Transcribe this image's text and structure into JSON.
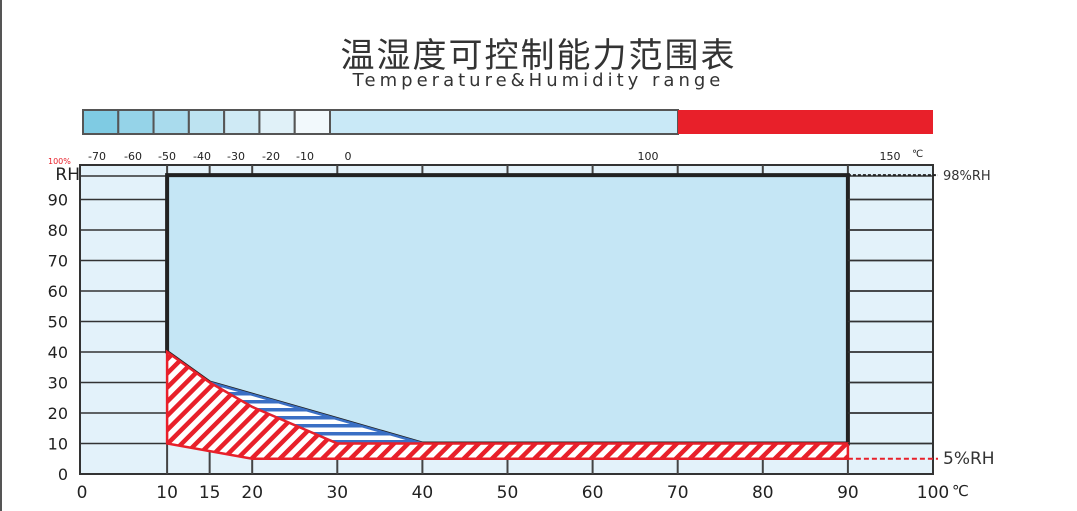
{
  "chart_data": {
    "type": "area",
    "title": "温湿度可控制能力范围表",
    "subtitle": "Temperature&Humidity range",
    "xlabel": "",
    "ylabel": "RH",
    "x_unit": "℃",
    "xlim": [
      0,
      100
    ],
    "ylim": [
      0,
      100
    ],
    "x_ticks": [
      "0",
      "10",
      "15",
      "20",
      "30",
      "40",
      "50",
      "60",
      "70",
      "80",
      "90",
      "100"
    ],
    "x_tick_values": [
      0,
      10,
      15,
      20,
      30,
      40,
      50,
      60,
      70,
      80,
      90,
      100
    ],
    "y_ticks": [
      "0",
      "10",
      "20",
      "30",
      "40",
      "50",
      "60",
      "70",
      "80",
      "90"
    ],
    "y_tick_values": [
      0,
      10,
      20,
      30,
      40,
      50,
      60,
      70,
      80,
      90
    ],
    "y_top_label": "100%",
    "grid": true,
    "temperature_bar": {
      "labels": [
        "-70",
        "-60",
        "-50",
        "-40",
        "-30",
        "-20",
        "-10",
        "0",
        "100",
        "150"
      ],
      "unit": "℃",
      "colors": {
        "cold": "#7fcbe3",
        "normal": "#c9e9f7",
        "hot": "#e8202a"
      }
    },
    "regions": [
      {
        "kind": "controllable",
        "color": "#c5e6f5",
        "points": [
          [
            10,
            98
          ],
          [
            90,
            98
          ],
          [
            90,
            10
          ],
          [
            40,
            10
          ],
          [
            30,
            18
          ],
          [
            15,
            30
          ],
          [
            10,
            40
          ]
        ]
      },
      {
        "kind": "blue-hatched",
        "color": "#3a6fc4",
        "points": [
          [
            15,
            30
          ],
          [
            30,
            18
          ],
          [
            40,
            10
          ],
          [
            30,
            10
          ],
          [
            20,
            22
          ]
        ]
      },
      {
        "kind": "red-hatched",
        "color": "#e8202a",
        "points": [
          [
            10,
            40
          ],
          [
            15,
            30
          ],
          [
            20,
            22
          ],
          [
            30,
            10
          ],
          [
            90,
            10
          ],
          [
            90,
            5
          ],
          [
            20,
            5
          ],
          [
            10,
            10
          ]
        ]
      }
    ],
    "annotations": [
      {
        "text": "98%RH",
        "y": 98,
        "line": "dotted",
        "color": "#222"
      },
      {
        "text": "5%RH",
        "y": 5,
        "line": "dashed",
        "color": "#e8202a"
      }
    ]
  }
}
